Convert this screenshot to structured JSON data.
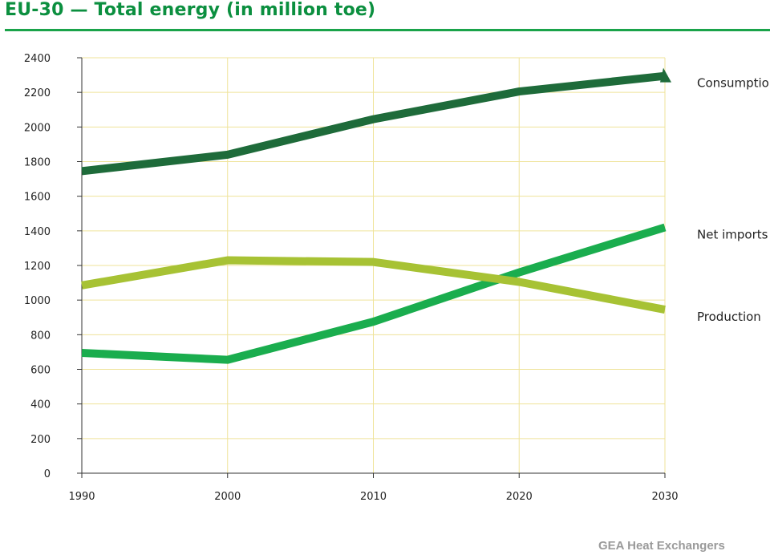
{
  "chart_data": {
    "type": "line",
    "title": "EU-30 — Total energy (in million toe)",
    "x": [
      "1990",
      "2000",
      "2010",
      "2020",
      "2030"
    ],
    "ylim": [
      0,
      2400
    ],
    "yticks": [
      "0",
      "200",
      "400",
      "600",
      "800",
      "1000",
      "1200",
      "1400",
      "1600",
      "1800",
      "2000",
      "2200",
      "2400"
    ],
    "grid": true,
    "legend": "right",
    "series": [
      {
        "name": "Consumption",
        "values": [
          1745,
          1840,
          2045,
          2205,
          2295
        ],
        "color": "#1e6b3a"
      },
      {
        "name": "Net imports",
        "values": [
          695,
          655,
          875,
          1160,
          1420
        ],
        "color": "#1aad4e"
      },
      {
        "name": "Production",
        "values": [
          1085,
          1230,
          1220,
          1105,
          945
        ],
        "color": "#a7c234"
      }
    ]
  },
  "footer": {
    "text": "GEA Heat Exchangers"
  }
}
